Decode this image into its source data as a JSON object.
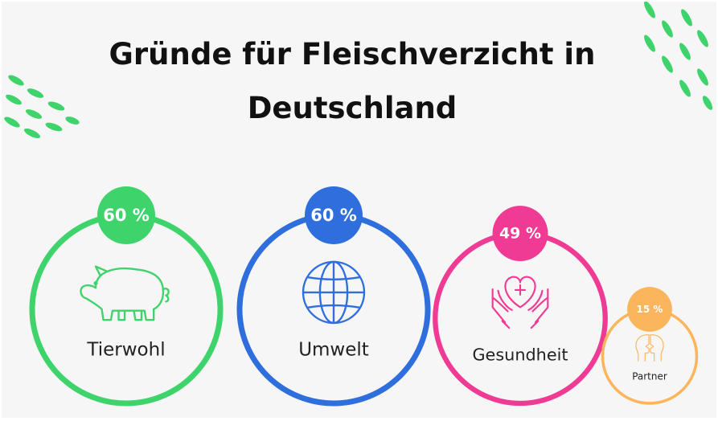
{
  "title": {
    "line1": "Gründe für Fleischverzicht in",
    "line2": "Deutschland"
  },
  "colors": {
    "background": "#f6f6f6",
    "title": "#111111",
    "decoration": "#3fd36b",
    "label_text": "#222222",
    "badge_text": "#ffffff"
  },
  "chart_data": {
    "type": "bubble",
    "title": "Gründe für Fleischverzicht in Deutschland",
    "unit": "%",
    "categories": [
      "Tierwohl",
      "Umwelt",
      "Gesundheit",
      "Partner"
    ],
    "values": [
      60,
      60,
      49,
      15
    ],
    "value_labels": [
      "60 %",
      "60 %",
      "49 %",
      "15 %"
    ],
    "colors": [
      "#3fd36b",
      "#2f6fdd",
      "#ef3b93",
      "#fbb55c"
    ],
    "icons": [
      "pig-icon",
      "globe-icon",
      "heart-in-hands-icon",
      "two-heads-icon"
    ]
  }
}
